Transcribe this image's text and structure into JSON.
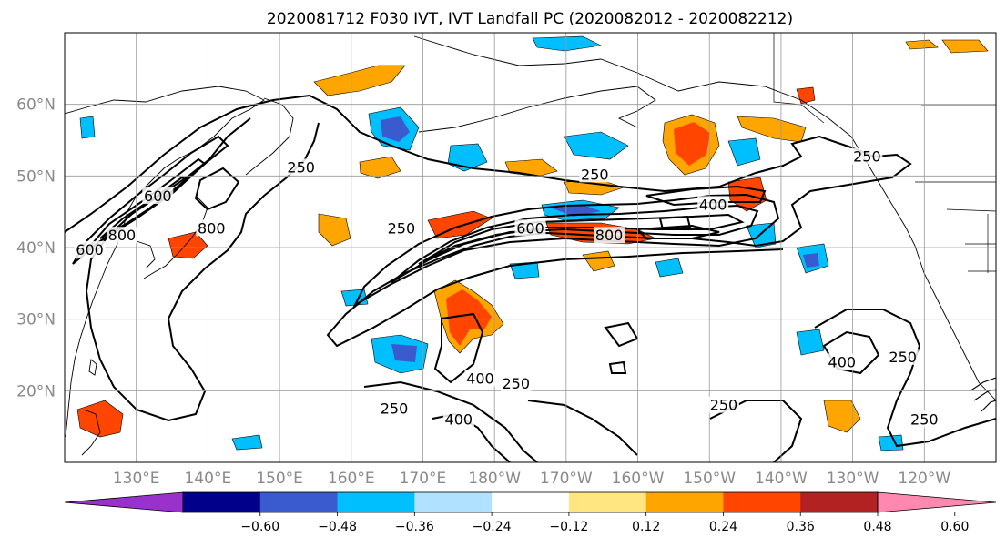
{
  "title": "2020081712 F030 IVT, IVT Landfall PC (2020082012 - 2020082212)",
  "map": {
    "lon_range": [
      120,
      250
    ],
    "lat_range": [
      10,
      70
    ],
    "lon_ticks": [
      {
        "lon": 130,
        "label": "130°E"
      },
      {
        "lon": 140,
        "label": "140°E"
      },
      {
        "lon": 150,
        "label": "150°E"
      },
      {
        "lon": 160,
        "label": "160°E"
      },
      {
        "lon": 170,
        "label": "170°E"
      },
      {
        "lon": 180,
        "label": "180°W"
      },
      {
        "lon": 190,
        "label": "170°W"
      },
      {
        "lon": 200,
        "label": "160°W"
      },
      {
        "lon": 210,
        "label": "150°W"
      },
      {
        "lon": 220,
        "label": "140°W"
      },
      {
        "lon": 230,
        "label": "130°W"
      },
      {
        "lon": 240,
        "label": "120°W"
      }
    ],
    "lat_ticks": [
      {
        "lat": 20,
        "label": "20°N"
      },
      {
        "lat": 30,
        "label": "30°N"
      },
      {
        "lat": 40,
        "label": "40°N"
      },
      {
        "lat": 50,
        "label": "50°N"
      },
      {
        "lat": 60,
        "label": "60°N"
      }
    ],
    "contour_labels": [
      {
        "text": "250",
        "lon": 153,
        "lat": 51
      },
      {
        "text": "250",
        "lon": 167,
        "lat": 42.5
      },
      {
        "text": "250",
        "lon": 194,
        "lat": 50
      },
      {
        "text": "250",
        "lon": 232,
        "lat": 52.5
      },
      {
        "text": "250",
        "lon": 183,
        "lat": 20.8
      },
      {
        "text": "250",
        "lon": 166,
        "lat": 17.3
      },
      {
        "text": "250",
        "lon": 212,
        "lat": 17.8
      },
      {
        "text": "250",
        "lon": 237,
        "lat": 24.5
      },
      {
        "text": "250",
        "lon": 240,
        "lat": 15.8
      },
      {
        "text": "400",
        "lon": 210.5,
        "lat": 45.8
      },
      {
        "text": "400",
        "lon": 228.5,
        "lat": 23.8
      },
      {
        "text": "400",
        "lon": 178,
        "lat": 21.5
      },
      {
        "text": "400",
        "lon": 175,
        "lat": 15.8
      },
      {
        "text": "600",
        "lon": 133,
        "lat": 47
      },
      {
        "text": "600",
        "lon": 185,
        "lat": 42.5
      },
      {
        "text": "800",
        "lon": 140.5,
        "lat": 42.5
      },
      {
        "text": "800",
        "lon": 128,
        "lat": 41.5
      },
      {
        "text": "800",
        "lon": 196,
        "lat": 41.5
      },
      {
        "text": "600",
        "lon": 123.5,
        "lat": 39.5
      }
    ]
  },
  "colorbar": {
    "tick_labels": [
      "−0.60",
      "−0.48",
      "−0.36",
      "−0.24",
      "−0.12",
      "0.12",
      "0.24",
      "0.36",
      "0.48",
      "0.60"
    ],
    "colors": [
      "#9932cc",
      "#00008b",
      "#3a5bd0",
      "#00bfff",
      "#b0e2ff",
      "#ffffff",
      "#ffe680",
      "#ffa500",
      "#ff4500",
      "#b22222",
      "#ff88b0"
    ]
  }
}
